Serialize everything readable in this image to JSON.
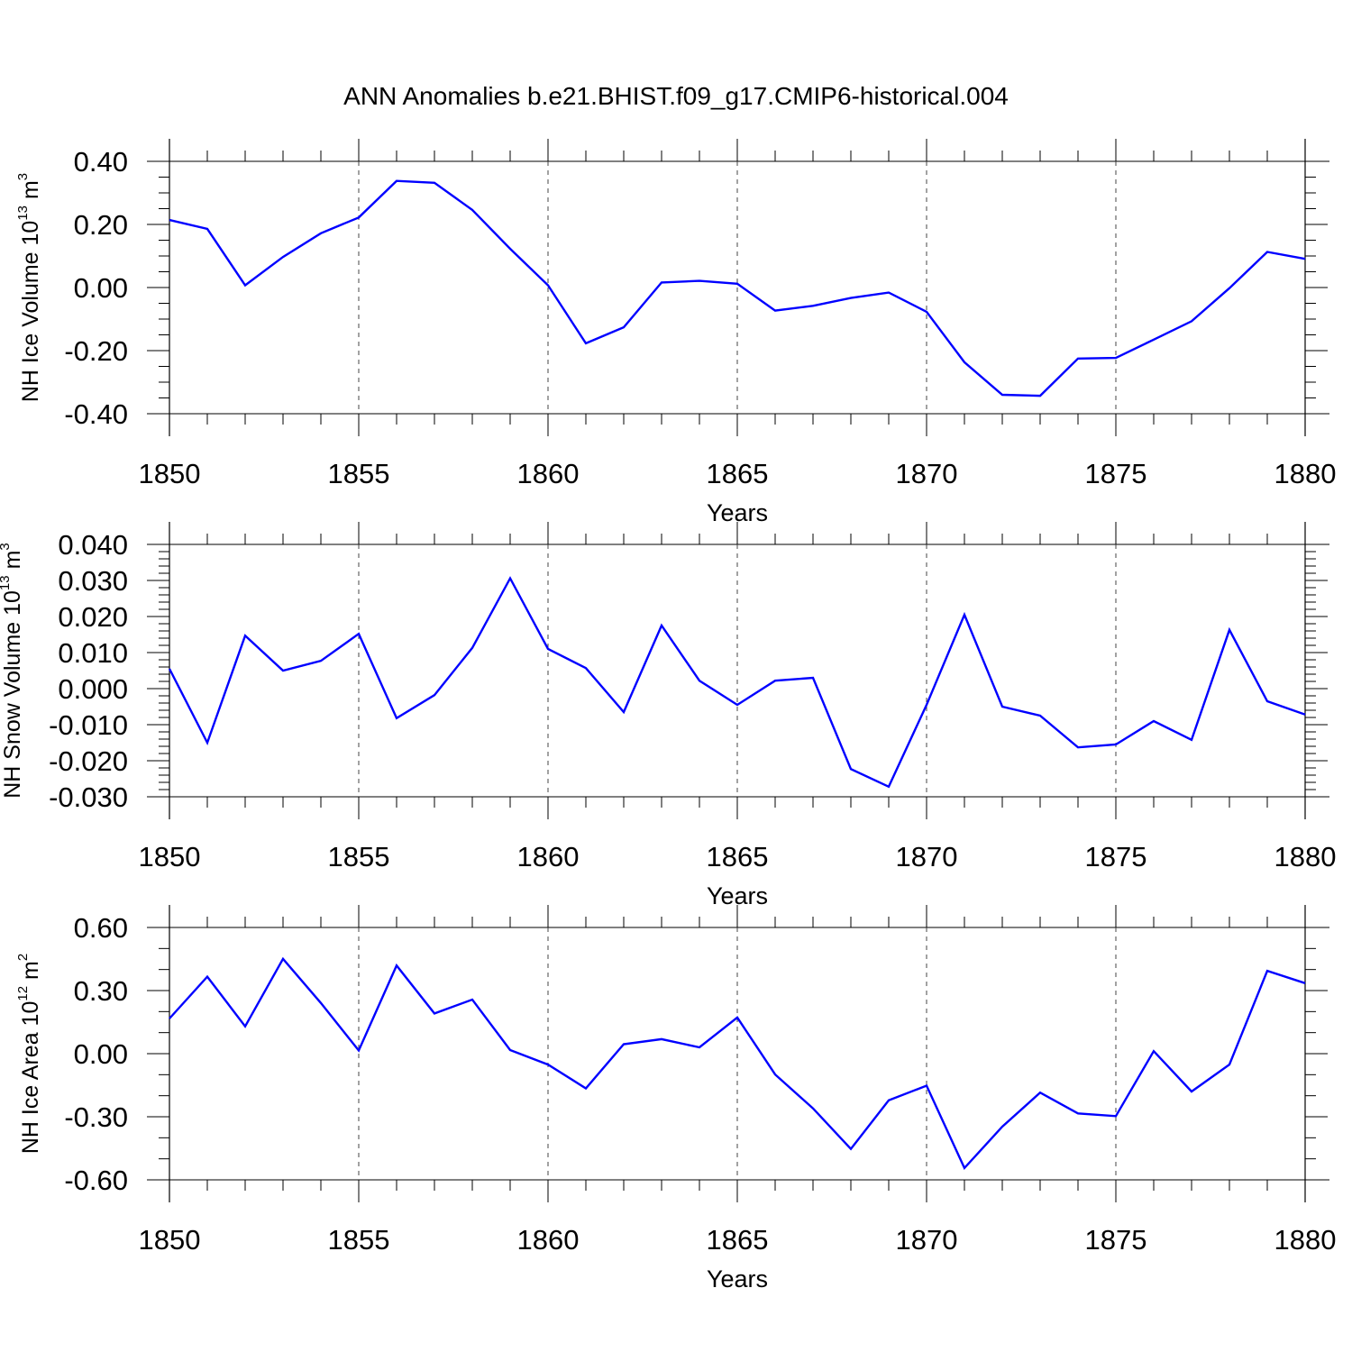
{
  "title": "ANN Anomalies b.e21.BHIST.f09_g17.CMIP6-historical.004",
  "line_color": "#0000ff",
  "chart_data": [
    {
      "type": "line",
      "xlabel": "Years",
      "ylabel_text": "NH Ice Volume 10",
      "ylabel_exp": "13",
      "ylabel_unit": "m",
      "ylabel_unit_exp": "3",
      "xlim": [
        1850,
        1880
      ],
      "ylim": [
        -0.4,
        0.4
      ],
      "xticks": [
        1850,
        1855,
        1860,
        1865,
        1870,
        1875,
        1880
      ],
      "yticks": [
        0.4,
        0.2,
        0.0,
        -0.2,
        -0.4
      ],
      "ytick_labels": [
        "0.40",
        "0.20",
        "0.00",
        "-0.20",
        "-0.40"
      ],
      "y_minor_step": 0.05,
      "x": [
        1850,
        1851,
        1852,
        1853,
        1854,
        1855,
        1856,
        1857,
        1858,
        1859,
        1860,
        1861,
        1862,
        1863,
        1864,
        1865,
        1866,
        1867,
        1868,
        1869,
        1870,
        1871,
        1872,
        1873,
        1874,
        1875,
        1876,
        1877,
        1878,
        1879,
        1880
      ],
      "series": [
        {
          "name": "NH Ice Volume",
          "values": [
            0.214,
            0.186,
            0.007,
            0.097,
            0.172,
            0.222,
            0.338,
            0.332,
            0.246,
            0.123,
            0.007,
            -0.177,
            -0.126,
            0.016,
            0.021,
            0.012,
            -0.073,
            -0.058,
            -0.033,
            -0.016,
            -0.077,
            -0.237,
            -0.34,
            -0.343,
            -0.225,
            -0.223,
            -0.165,
            -0.107,
            -0.002,
            0.113,
            0.091
          ]
        }
      ]
    },
    {
      "type": "line",
      "xlabel": "Years",
      "ylabel_text": "NH Snow Volume 10",
      "ylabel_exp": "13",
      "ylabel_unit": "m",
      "ylabel_unit_exp": "3",
      "xlim": [
        1850,
        1880
      ],
      "ylim": [
        -0.03,
        0.04
      ],
      "xticks": [
        1850,
        1855,
        1860,
        1865,
        1870,
        1875,
        1880
      ],
      "yticks": [
        0.04,
        0.03,
        0.02,
        0.01,
        0.0,
        -0.01,
        -0.02,
        -0.03
      ],
      "ytick_labels": [
        "0.040",
        "0.030",
        "0.020",
        "0.010",
        "0.000",
        "-0.010",
        "-0.020",
        "-0.030"
      ],
      "y_minor_step": 0.002,
      "x": [
        1850,
        1851,
        1852,
        1853,
        1854,
        1855,
        1856,
        1857,
        1858,
        1859,
        1860,
        1861,
        1862,
        1863,
        1864,
        1865,
        1866,
        1867,
        1868,
        1869,
        1870,
        1871,
        1872,
        1873,
        1874,
        1875,
        1876,
        1877,
        1878,
        1879,
        1880
      ],
      "series": [
        {
          "name": "NH Snow Volume",
          "values": [
            0.0055,
            -0.015,
            0.0147,
            0.005,
            0.0077,
            0.0152,
            -0.0082,
            -0.0018,
            0.0113,
            0.0306,
            0.011,
            0.0057,
            -0.0065,
            0.0175,
            0.0022,
            -0.0045,
            0.0022,
            0.003,
            -0.0223,
            -0.0272,
            -0.0045,
            0.0205,
            -0.005,
            -0.0075,
            -0.0163,
            -0.0155,
            -0.009,
            -0.0142,
            0.0163,
            -0.0035,
            -0.0072
          ]
        }
      ]
    },
    {
      "type": "line",
      "xlabel": "Years",
      "ylabel_text": "NH Ice Area 10",
      "ylabel_exp": "12",
      "ylabel_unit": "m",
      "ylabel_unit_exp": "2",
      "xlim": [
        1850,
        1880
      ],
      "ylim": [
        -0.6,
        0.6
      ],
      "xticks": [
        1850,
        1855,
        1860,
        1865,
        1870,
        1875,
        1880
      ],
      "yticks": [
        0.6,
        0.3,
        0.0,
        -0.3,
        -0.6
      ],
      "ytick_labels": [
        "0.60",
        "0.30",
        "0.00",
        "-0.30",
        "-0.60"
      ],
      "y_minor_step": 0.1,
      "x": [
        1850,
        1851,
        1852,
        1853,
        1854,
        1855,
        1856,
        1857,
        1858,
        1859,
        1860,
        1861,
        1862,
        1863,
        1864,
        1865,
        1866,
        1867,
        1868,
        1869,
        1870,
        1871,
        1872,
        1873,
        1874,
        1875,
        1876,
        1877,
        1878,
        1879,
        1880
      ],
      "series": [
        {
          "name": "NH Ice Area",
          "values": [
            0.167,
            0.366,
            0.13,
            0.451,
            0.241,
            0.015,
            0.419,
            0.191,
            0.257,
            0.017,
            -0.052,
            -0.165,
            0.045,
            0.069,
            0.03,
            0.172,
            -0.099,
            -0.26,
            -0.453,
            -0.222,
            -0.152,
            -0.544,
            -0.347,
            -0.185,
            -0.284,
            -0.297,
            0.012,
            -0.18,
            -0.052,
            0.394,
            0.335
          ]
        }
      ]
    }
  ]
}
